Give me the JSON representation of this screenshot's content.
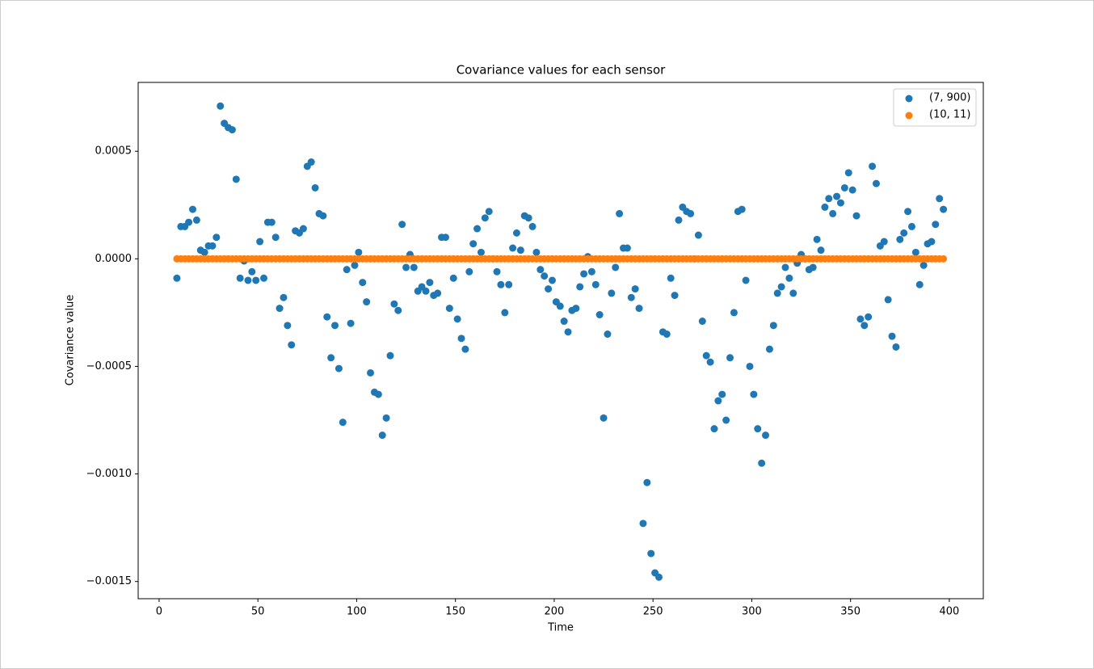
{
  "chart_data": {
    "type": "scatter",
    "title": "Covariance values for each sensor",
    "xlabel": "Time",
    "ylabel": "Covariance value",
    "xlim": [
      -10.6,
      417.2
    ],
    "ylim": [
      -0.00158,
      0.00082
    ],
    "xticks": [
      0,
      50,
      100,
      150,
      200,
      250,
      300,
      350,
      400
    ],
    "yticks": [
      {
        "value": -0.0015,
        "label": "−0.0015"
      },
      {
        "value": -0.001,
        "label": "−0.0010"
      },
      {
        "value": -0.0005,
        "label": "−0.0005"
      },
      {
        "value": 0,
        "label": "0.0000"
      },
      0.0005
    ],
    "legend": "upper right",
    "x": [
      9,
      11,
      13,
      15,
      17,
      19,
      21,
      23,
      25,
      27,
      29,
      31,
      33,
      35,
      37,
      39,
      41,
      43,
      45,
      47,
      49,
      51,
      53,
      55,
      57,
      59,
      61,
      63,
      65,
      67,
      69,
      71,
      73,
      75,
      77,
      79,
      81,
      83,
      85,
      87,
      89,
      91,
      93,
      95,
      97,
      99,
      101,
      103,
      105,
      107,
      109,
      111,
      113,
      115,
      117,
      119,
      121,
      123,
      125,
      127,
      129,
      131,
      133,
      135,
      137,
      139,
      141,
      143,
      145,
      147,
      149,
      151,
      153,
      155,
      157,
      159,
      161,
      163,
      165,
      167,
      169,
      171,
      173,
      175,
      177,
      179,
      181,
      183,
      185,
      187,
      189,
      191,
      193,
      195,
      197,
      199,
      201,
      203,
      205,
      207,
      209,
      211,
      213,
      215,
      217,
      219,
      221,
      223,
      225,
      227,
      229,
      231,
      233,
      235,
      237,
      239,
      241,
      243,
      245,
      247,
      249,
      251,
      253,
      255,
      257,
      259,
      261,
      263,
      265,
      267,
      269,
      271,
      273,
      275,
      277,
      279,
      281,
      283,
      285,
      287,
      289,
      291,
      293,
      295,
      297,
      299,
      301,
      303,
      305,
      307,
      309,
      311,
      313,
      315,
      317,
      319,
      321,
      323,
      325,
      327,
      329,
      331,
      333,
      335,
      337,
      339,
      341,
      343,
      345,
      347,
      349,
      351,
      353,
      355,
      357,
      359,
      361,
      363,
      365,
      367,
      369,
      371,
      373,
      375,
      377,
      379,
      381,
      383,
      385,
      387,
      389,
      391,
      393,
      395,
      397
    ],
    "series": [
      {
        "name": "(7, 900)",
        "color": "#1f77b4",
        "values": [
          -9e-05,
          0.00015,
          0.00015,
          0.00017,
          0.00023,
          0.00018,
          4e-05,
          3e-05,
          6e-05,
          6e-05,
          0.0001,
          0.00071,
          0.00063,
          0.00061,
          0.0006,
          0.00037,
          -9e-05,
          -1e-05,
          -0.0001,
          -6e-05,
          -0.0001,
          8e-05,
          -9e-05,
          0.00017,
          0.00017,
          0.0001,
          -0.00023,
          -0.00018,
          -0.00031,
          -0.0004,
          0.00013,
          0.00012,
          0.00014,
          0.00043,
          0.00045,
          0.00033,
          0.00021,
          0.0002,
          -0.00027,
          -0.00046,
          -0.00031,
          -0.00051,
          -0.00076,
          -5e-05,
          -0.0003,
          -3e-05,
          3e-05,
          -0.00011,
          -0.0002,
          -0.00053,
          -0.00062,
          -0.00063,
          -0.00082,
          -0.00074,
          -0.00045,
          -0.00021,
          -0.00024,
          0.00016,
          -4e-05,
          2e-05,
          -4e-05,
          -0.00015,
          -0.00013,
          -0.00015,
          -0.00011,
          -0.00017,
          -0.00016,
          0.0001,
          0.0001,
          -0.00023,
          -9e-05,
          -0.00028,
          -0.00037,
          -0.00042,
          -6e-05,
          7e-05,
          0.00014,
          3e-05,
          0.00019,
          0.00022,
          0.0,
          -6e-05,
          -0.00012,
          -0.00025,
          -0.00012,
          5e-05,
          0.00012,
          4e-05,
          0.0002,
          0.00019,
          0.00015,
          3e-05,
          -5e-05,
          -8e-05,
          -0.00014,
          -0.0001,
          -0.0002,
          -0.00022,
          -0.00029,
          -0.00034,
          -0.00024,
          -0.00023,
          -0.00013,
          -7e-05,
          1e-05,
          -6e-05,
          -0.00012,
          -0.00026,
          -0.00074,
          -0.00035,
          -0.00016,
          -4e-05,
          0.00021,
          5e-05,
          5e-05,
          -0.00018,
          -0.00014,
          -0.00023,
          -0.00123,
          -0.00104,
          -0.00137,
          -0.00146,
          -0.00148,
          -0.00034,
          -0.00035,
          -9e-05,
          -0.00017,
          0.00018,
          0.00024,
          0.00022,
          0.00021,
          0.0,
          0.00011,
          -0.00029,
          -0.00045,
          -0.00048,
          -0.00079,
          -0.00066,
          -0.00063,
          -0.00075,
          -0.00046,
          -0.00025,
          0.00022,
          0.00023,
          -0.0001,
          -0.0005,
          -0.00063,
          -0.00079,
          -0.00095,
          -0.00082,
          -0.00042,
          -0.00031,
          -0.00016,
          -0.00013,
          -4e-05,
          -9e-05,
          -0.00016,
          -2e-05,
          2e-05,
          0.0,
          -5e-05,
          -4e-05,
          9e-05,
          4e-05,
          0.00024,
          0.00028,
          0.00021,
          0.00029,
          0.00026,
          0.00033,
          0.0004,
          0.00032,
          0.0002,
          -0.00028,
          -0.00031,
          -0.00027,
          0.00043,
          0.00035,
          6e-05,
          8e-05,
          -0.00019,
          -0.00036,
          -0.00041,
          9e-05,
          0.00012,
          0.00022,
          0.00015,
          3e-05,
          -0.00012,
          -3e-05,
          7e-05,
          8e-05,
          0.00016,
          0.00028,
          0.00023
        ]
      },
      {
        "name": "(10, 11)",
        "color": "#ff7f0e",
        "values": [
          0,
          0,
          0,
          0,
          0,
          0,
          0,
          0,
          0,
          0,
          0,
          0,
          0,
          0,
          0,
          0,
          0,
          0,
          0,
          0,
          0,
          0,
          0,
          0,
          0,
          0,
          0,
          0,
          0,
          0,
          0,
          0,
          0,
          0,
          0,
          0,
          0,
          0,
          0,
          0,
          0,
          0,
          0,
          0,
          0,
          0,
          0,
          0,
          0,
          0,
          0,
          0,
          0,
          0,
          0,
          0,
          0,
          0,
          0,
          0,
          0,
          0,
          0,
          0,
          0,
          0,
          0,
          0,
          0,
          0,
          0,
          0,
          0,
          0,
          0,
          0,
          0,
          0,
          0,
          0,
          0,
          0,
          0,
          0,
          0,
          0,
          0,
          0,
          0,
          0,
          0,
          0,
          0,
          0,
          0,
          0,
          0,
          0,
          0,
          0,
          0,
          0,
          0,
          0,
          0,
          0,
          0,
          0,
          0,
          0,
          0,
          0,
          0,
          0,
          0,
          0,
          0,
          0,
          0,
          0,
          0,
          0,
          0,
          0,
          0,
          0,
          0,
          0,
          0,
          0,
          0,
          0,
          0,
          0,
          0,
          0,
          0,
          0,
          0,
          0,
          0,
          0,
          0,
          0,
          0,
          0,
          0,
          0,
          0,
          0,
          0,
          0,
          0,
          0,
          0,
          0,
          0,
          0,
          0,
          0,
          0,
          0,
          0,
          0,
          0,
          0,
          0,
          0,
          0,
          0,
          0,
          0,
          0,
          0,
          0,
          0,
          0,
          0,
          0,
          0,
          0,
          0,
          0,
          0,
          0,
          0,
          0,
          0,
          0,
          0,
          0,
          0,
          0,
          0,
          0
        ]
      }
    ]
  }
}
